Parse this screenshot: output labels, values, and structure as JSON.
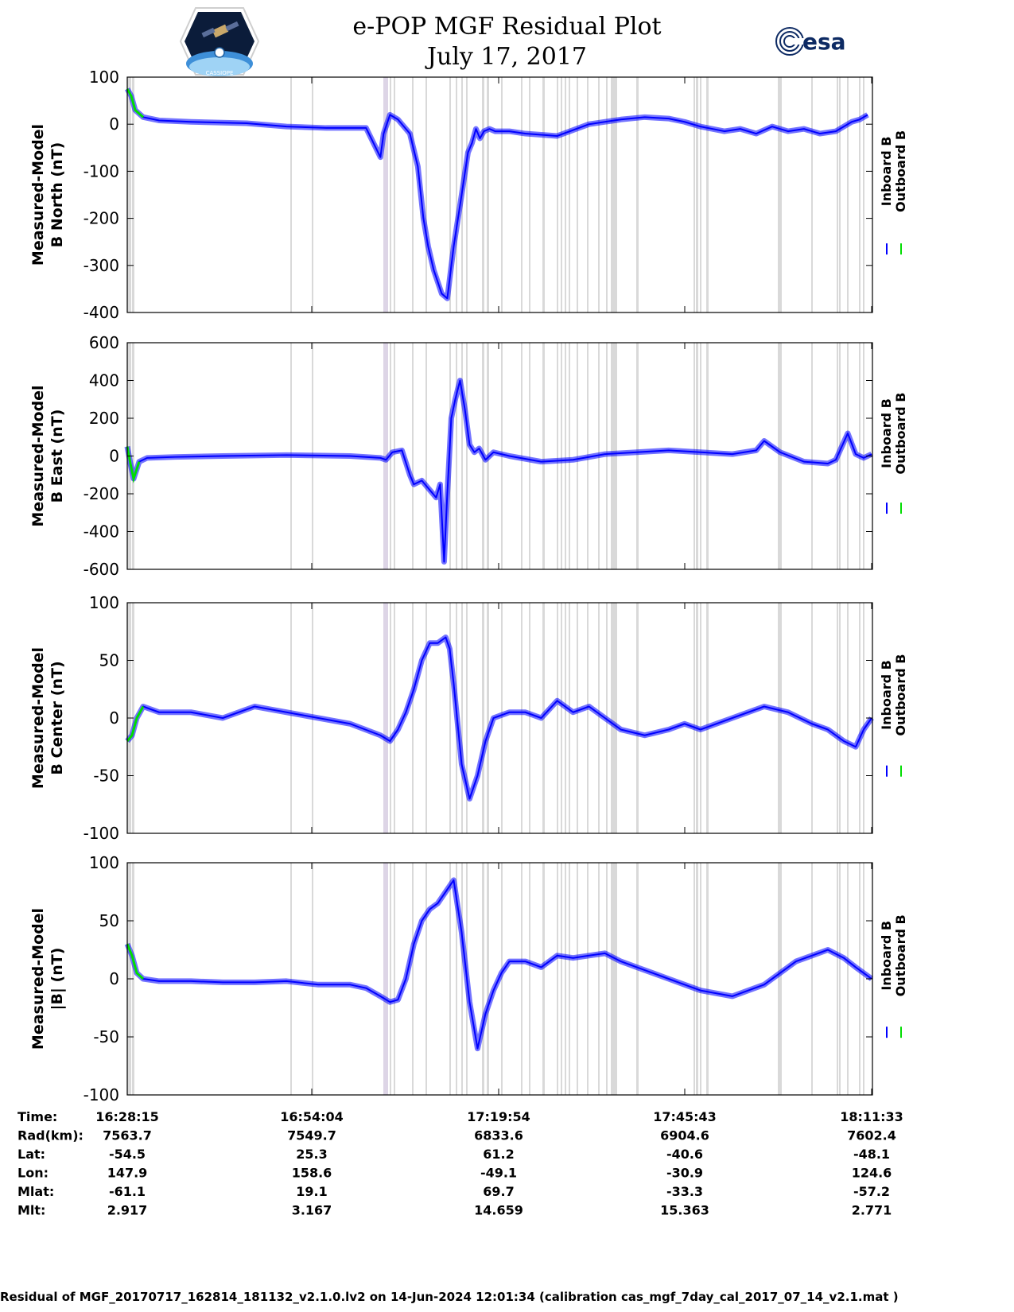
{
  "title": "e-POP MGF Residual Plot",
  "subtitle": "July 17, 2017",
  "logos": {
    "left": {
      "name": "cassiope-mission-logo",
      "text": "CASSIOPE"
    },
    "right": {
      "name": "esa-logo",
      "text": "esa"
    }
  },
  "colors": {
    "inboard": "#0000ff",
    "outboard": "#00dd00",
    "gap_shading": "#d9d9d9",
    "gap_shading_alt": "#ddd5e6"
  },
  "chart_data": [
    {
      "type": "line",
      "ylabel_line1": "Measured-Model",
      "ylabel_line2": "B North (nT)",
      "ylim": [
        -400,
        100
      ],
      "yticks": [
        100,
        0,
        -100,
        -200,
        -300,
        -400
      ],
      "legend": [
        "Inboard B",
        "Outboard B"
      ],
      "series": [
        {
          "name": "Inboard B",
          "color": "#0000ff",
          "x": [
            0,
            5,
            10,
            20,
            40,
            80,
            150,
            200,
            250,
            300,
            318,
            322,
            330,
            340,
            355,
            365,
            372,
            378,
            385,
            395,
            402,
            410,
            420,
            428,
            433,
            438,
            443,
            448,
            455,
            462,
            470,
            480,
            500,
            540,
            580,
            620,
            650,
            680,
            700,
            720,
            750,
            770,
            790,
            810,
            830,
            850,
            870,
            890,
            910,
            920,
            930
          ],
          "y": [
            75,
            60,
            30,
            15,
            8,
            5,
            2,
            -5,
            -8,
            -8,
            -70,
            -20,
            20,
            10,
            -20,
            -90,
            -200,
            -260,
            -310,
            -360,
            -370,
            -260,
            -150,
            -60,
            -40,
            -10,
            -30,
            -15,
            -10,
            -15,
            -15,
            -15,
            -20,
            -25,
            0,
            10,
            15,
            12,
            5,
            -5,
            -15,
            -10,
            -20,
            -5,
            -15,
            -10,
            -20,
            -15,
            5,
            10,
            20
          ]
        }
      ],
      "annotation_y": [
        -350
      ]
    },
    {
      "type": "line",
      "ylabel_line1": "Measured-Model",
      "ylabel_line2": "B East (nT)",
      "ylim": [
        -600,
        600
      ],
      "yticks": [
        600,
        400,
        200,
        0,
        -200,
        -400,
        -600
      ],
      "legend": [
        "Inboard B",
        "Outboard B"
      ],
      "series": [
        {
          "name": "Inboard B",
          "color": "#0000ff",
          "x": [
            0,
            4,
            8,
            15,
            25,
            60,
            120,
            200,
            280,
            318,
            325,
            333,
            345,
            355,
            360,
            370,
            380,
            388,
            393,
            398,
            402,
            407,
            412,
            418,
            424,
            430,
            436,
            442,
            450,
            460,
            480,
            520,
            560,
            600,
            640,
            680,
            720,
            760,
            790,
            800,
            820,
            850,
            880,
            890,
            905,
            915,
            925,
            935
          ],
          "y": [
            50,
            -40,
            -120,
            -30,
            -10,
            -5,
            0,
            5,
            0,
            -10,
            -20,
            20,
            30,
            -100,
            -150,
            -130,
            -180,
            -220,
            -150,
            -560,
            -200,
            200,
            300,
            400,
            250,
            60,
            20,
            40,
            -20,
            20,
            0,
            -30,
            -20,
            10,
            20,
            30,
            20,
            10,
            30,
            80,
            20,
            -30,
            -40,
            -20,
            120,
            10,
            -10,
            10
          ]
        }
      ]
    },
    {
      "type": "line",
      "ylabel_line1": "Measured-Model",
      "ylabel_line2": "B Center (nT)",
      "ylim": [
        -100,
        100
      ],
      "yticks": [
        100,
        50,
        0,
        -50,
        -100
      ],
      "legend": [
        "Inboard B",
        "Outboard B"
      ],
      "series": [
        {
          "name": "Inboard B",
          "color": "#0000ff",
          "x": [
            0,
            6,
            12,
            20,
            40,
            80,
            120,
            160,
            200,
            240,
            280,
            318,
            330,
            340,
            350,
            360,
            370,
            380,
            390,
            400,
            405,
            410,
            420,
            430,
            440,
            450,
            460,
            480,
            500,
            520,
            540,
            560,
            580,
            600,
            620,
            650,
            680,
            700,
            720,
            760,
            800,
            830,
            860,
            880,
            900,
            915,
            925,
            935
          ],
          "y": [
            -20,
            -15,
            0,
            10,
            5,
            5,
            0,
            10,
            5,
            0,
            -5,
            -15,
            -20,
            -10,
            5,
            25,
            50,
            65,
            65,
            70,
            60,
            30,
            -40,
            -70,
            -50,
            -20,
            0,
            5,
            5,
            0,
            15,
            5,
            10,
            0,
            -10,
            -15,
            -10,
            -5,
            -10,
            0,
            10,
            5,
            -5,
            -10,
            -20,
            -25,
            -10,
            0
          ]
        }
      ]
    },
    {
      "type": "line",
      "ylabel_line1": "Measured-Model",
      "ylabel_line2": "|B| (nT)",
      "ylim": [
        -100,
        100
      ],
      "yticks": [
        100,
        50,
        0,
        -50,
        -100
      ],
      "legend": [
        "Inboard B",
        "Outboard B"
      ],
      "series": [
        {
          "name": "Inboard B",
          "color": "#0000ff",
          "x": [
            0,
            6,
            12,
            20,
            40,
            80,
            120,
            160,
            200,
            240,
            280,
            300,
            318,
            330,
            340,
            350,
            360,
            370,
            380,
            390,
            400,
            410,
            420,
            430,
            440,
            450,
            460,
            470,
            480,
            500,
            520,
            540,
            560,
            580,
            600,
            620,
            640,
            660,
            680,
            700,
            720,
            760,
            800,
            820,
            840,
            860,
            880,
            900,
            915,
            925,
            935
          ],
          "y": [
            30,
            20,
            5,
            0,
            -2,
            -2,
            -3,
            -3,
            -2,
            -5,
            -5,
            -8,
            -15,
            -20,
            -18,
            0,
            30,
            50,
            60,
            65,
            75,
            85,
            40,
            -20,
            -60,
            -30,
            -10,
            5,
            15,
            15,
            10,
            20,
            18,
            20,
            22,
            15,
            10,
            5,
            0,
            -5,
            -10,
            -15,
            -5,
            5,
            15,
            20,
            25,
            18,
            10,
            5,
            0
          ]
        }
      ]
    }
  ],
  "x_axis": {
    "ticks": [
      "16:28:15",
      "16:54:04",
      "17:19:54",
      "17:45:43",
      "18:11:33"
    ],
    "rows": [
      {
        "label": "Time:",
        "values": [
          "16:28:15",
          "16:54:04",
          "17:19:54",
          "17:45:43",
          "18:11:33"
        ]
      },
      {
        "label": "Rad(km):",
        "values": [
          "7563.7",
          "7549.7",
          "6833.6",
          "6904.6",
          "7602.4"
        ]
      },
      {
        "label": "Lat:",
        "values": [
          "-54.5",
          "25.3",
          "61.2",
          "-40.6",
          "-48.1"
        ]
      },
      {
        "label": "Lon:",
        "values": [
          "147.9",
          "158.6",
          "-49.1",
          "-30.9",
          "124.6"
        ]
      },
      {
        "label": "Mlat:",
        "values": [
          "-61.1",
          "19.1",
          "69.7",
          "-33.3",
          "-57.2"
        ]
      },
      {
        "label": "Mlt:",
        "values": [
          "2.917",
          "3.167",
          "14.659",
          "15.363",
          "2.771"
        ]
      }
    ]
  },
  "footer": "Residual of MGF_20170717_162814_181132_v2.1.0.lv2 on 14-Jun-2024 12:01:34 (calibration cas_mgf_7day_cal_2017_07_14_v2.1.mat )"
}
